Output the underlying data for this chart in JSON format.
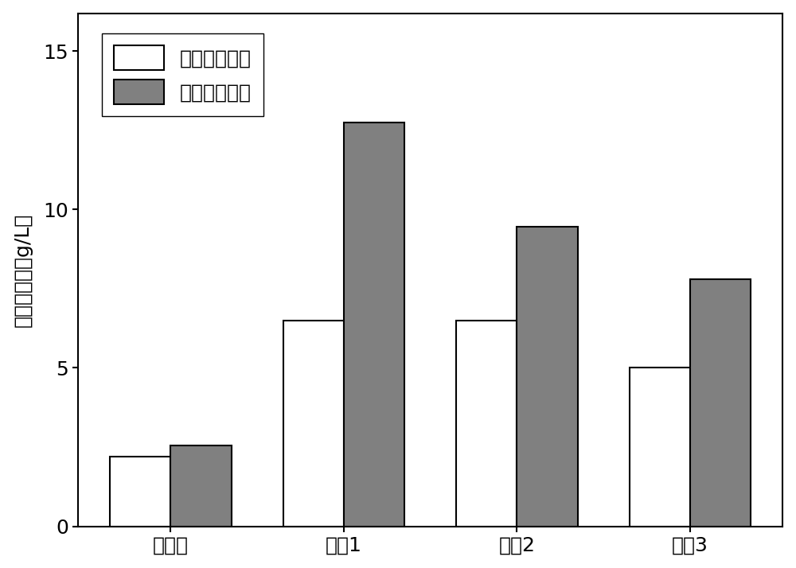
{
  "categories": [
    "未处理",
    "实例1",
    "实例2",
    "实例3"
  ],
  "white_values": [
    2.2,
    6.5,
    6.5,
    5.0
  ],
  "gray_values": [
    2.55,
    12.75,
    9.45,
    7.8
  ],
  "white_color": "#ffffff",
  "gray_color": "#808080",
  "bar_edge_color": "#000000",
  "ylabel": "还原糖产量（g/L）",
  "ylim": [
    0,
    16.2
  ],
  "yticks": [
    0,
    5,
    10,
    15
  ],
  "legend_labels": [
    "单独化学处理",
    "细菌强化处理"
  ],
  "bar_width": 0.35,
  "background_color": "#ffffff",
  "tick_fontsize": 18,
  "label_fontsize": 18,
  "legend_fontsize": 18
}
